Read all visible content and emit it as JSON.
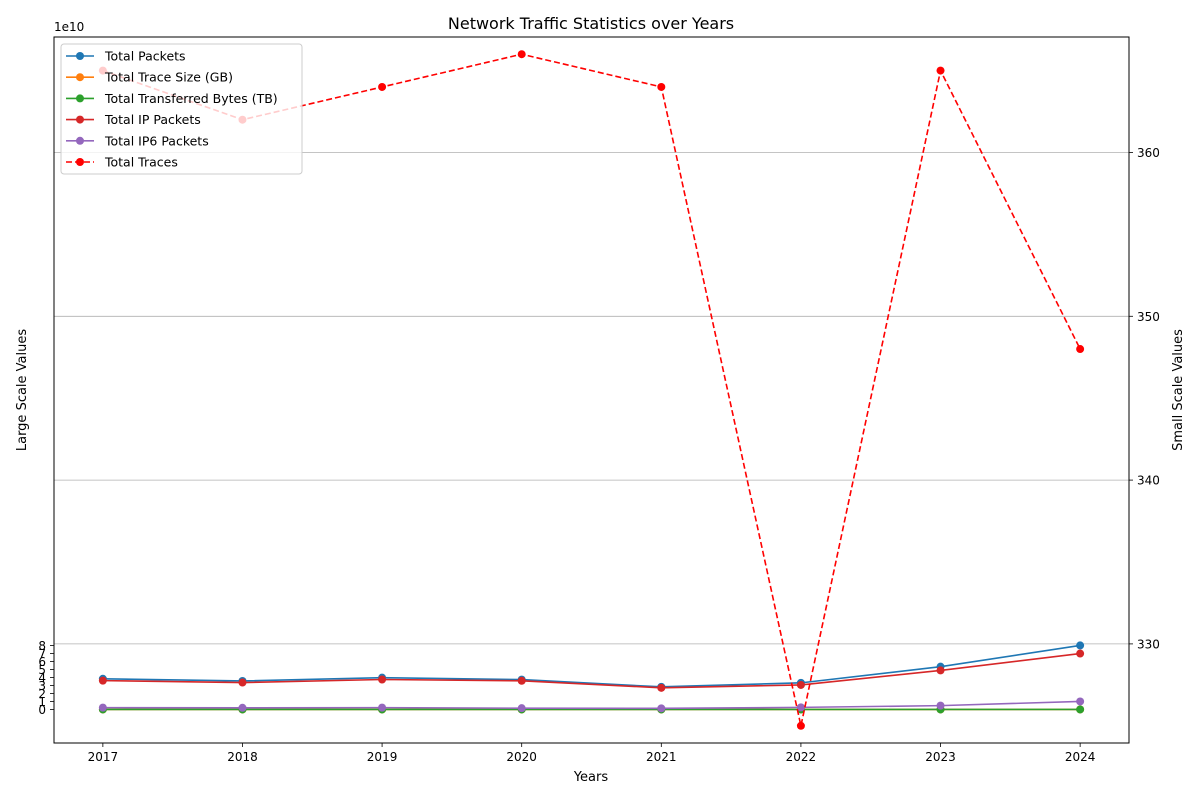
{
  "chart_data": {
    "type": "line",
    "title": "Network Traffic Statistics over Years",
    "xlabel": "Years",
    "ylabel_left": "Large Scale Values",
    "ylabel_right": "Small Scale Values",
    "offset_text_left": "1e10",
    "x": [
      2017,
      2018,
      2019,
      2020,
      2021,
      2022,
      2023,
      2024
    ],
    "x_ticks": [
      "2017",
      "2018",
      "2019",
      "2020",
      "2021",
      "2022",
      "2023",
      "2024"
    ],
    "ylim_left": [
      -4.2,
      84.2
    ],
    "yticks_left": [
      "0",
      "1",
      "2",
      "3",
      "4",
      "5",
      "6",
      "7",
      "8"
    ],
    "yticks_left_values": [
      0,
      1,
      2,
      3,
      4,
      5,
      6,
      7,
      8
    ],
    "ylim_right": [
      323.95,
      367.05
    ],
    "yticks_right": [
      "330",
      "340",
      "350",
      "360"
    ],
    "yticks_right_values": [
      330,
      340,
      350,
      360
    ],
    "grid": "horizontal lines at right-axis ticks",
    "legend_position": "upper-left",
    "series": [
      {
        "name": "Total Packets",
        "axis": "left",
        "color": "#1f77b4",
        "style": "solid",
        "values": [
          3.84,
          3.57,
          3.98,
          3.74,
          2.83,
          3.33,
          5.36,
          8.02
        ]
      },
      {
        "name": "Total Trace Size (GB)",
        "axis": "left",
        "color": "#ff7f0e",
        "style": "solid",
        "values": [
          0,
          0,
          0,
          0,
          0,
          0,
          0,
          0
        ]
      },
      {
        "name": "Total Transferred Bytes (TB)",
        "axis": "left",
        "color": "#2ca02c",
        "style": "solid",
        "values": [
          0,
          0,
          0,
          0,
          0,
          0,
          0,
          0
        ]
      },
      {
        "name": "Total IP Packets",
        "axis": "left",
        "color": "#d62728",
        "style": "solid",
        "values": [
          3.61,
          3.37,
          3.75,
          3.59,
          2.71,
          3.07,
          4.89,
          7.0
        ]
      },
      {
        "name": "Total IP6 Packets",
        "axis": "left",
        "color": "#9467bd",
        "style": "solid",
        "values": [
          0.23,
          0.21,
          0.23,
          0.16,
          0.14,
          0.26,
          0.48,
          1.0
        ]
      },
      {
        "name": "Total Traces",
        "axis": "right",
        "color": "#ff0000",
        "style": "dashed",
        "values": [
          365,
          362,
          364,
          366,
          364,
          325,
          365,
          348
        ]
      }
    ]
  }
}
